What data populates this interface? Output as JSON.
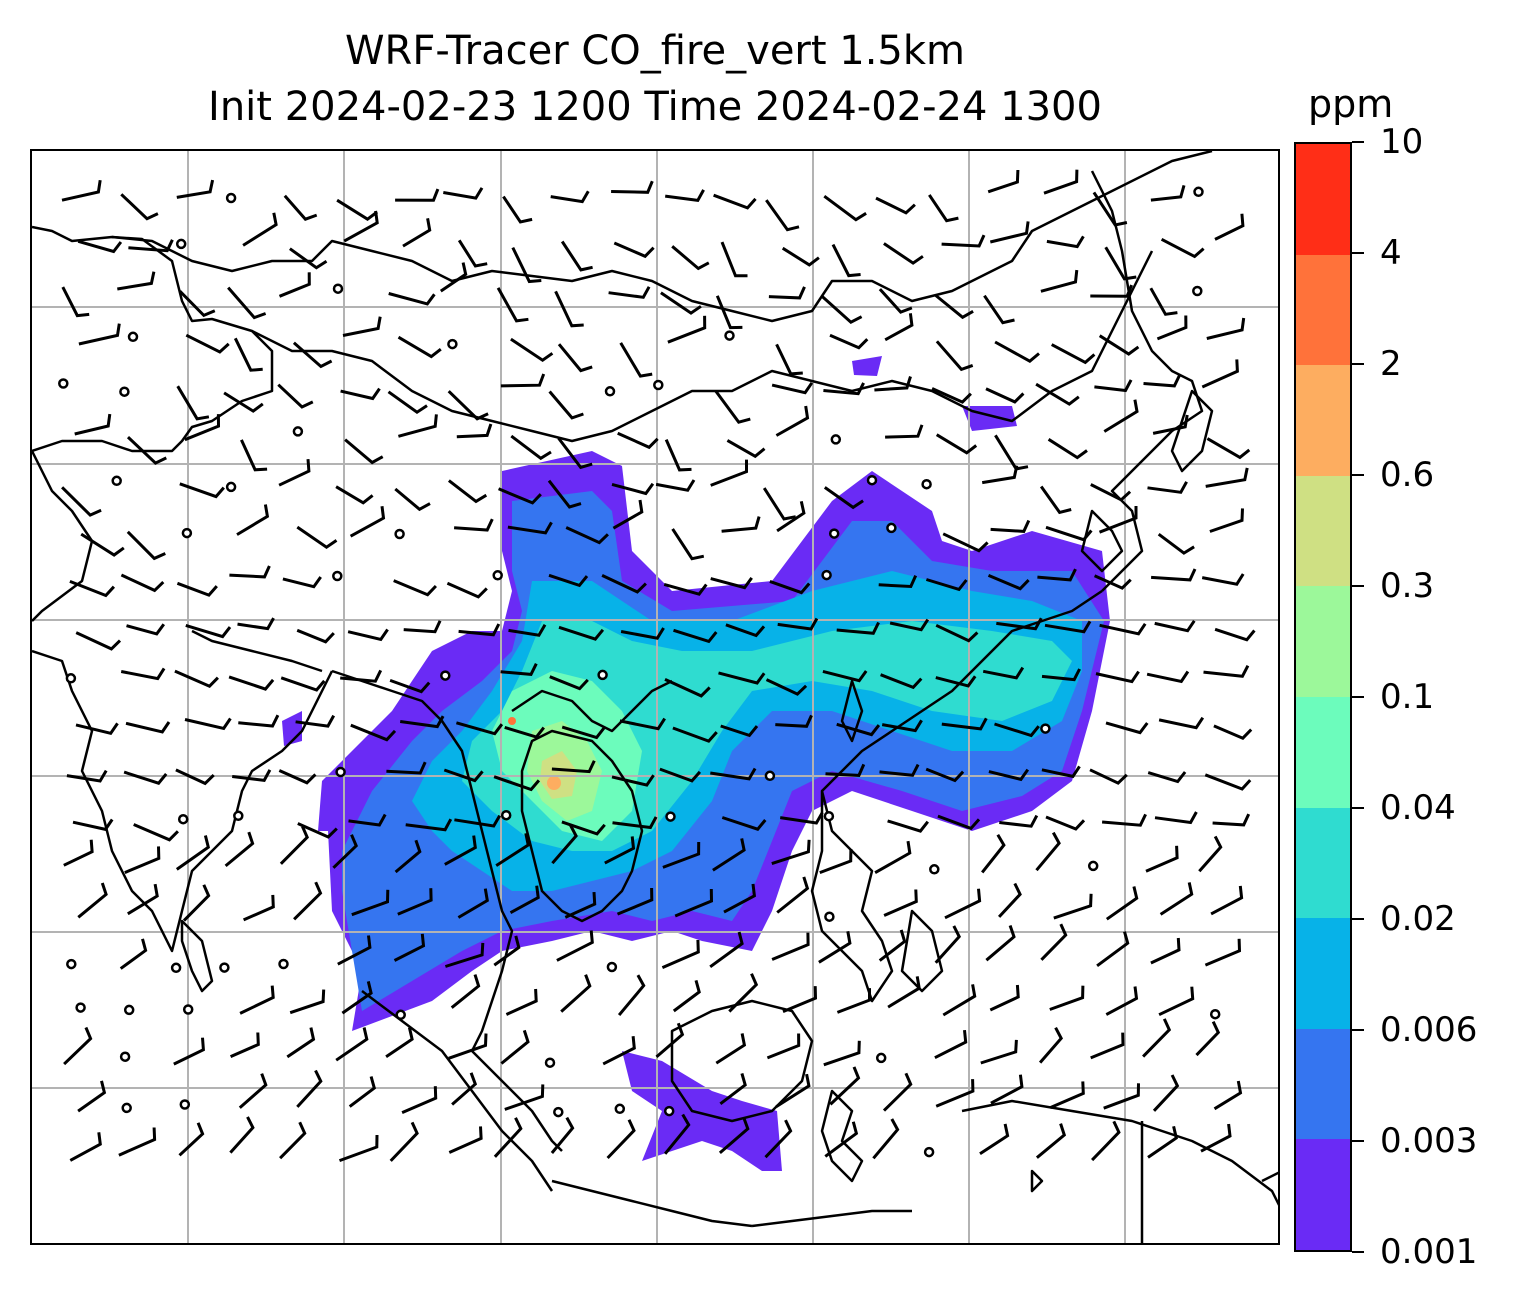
{
  "title": {
    "line1": "WRF-Tracer CO_fire_vert 1.5km",
    "line2": "Init 2024-02-23 1200 Time 2024-02-24 1300"
  },
  "colorbar": {
    "unit": "ppm",
    "levels": [
      "0.001",
      "0.003",
      "0.006",
      "0.02",
      "0.04",
      "0.1",
      "0.3",
      "0.6",
      "2",
      "4",
      "10"
    ],
    "colors": [
      "#6a2bf5",
      "#3575f0",
      "#07b2e8",
      "#2fdcd0",
      "#6cfcbc",
      "#9cf89a",
      "#cfe083",
      "#fdad60",
      "#ff723a",
      "#ff2e17"
    ]
  },
  "map": {
    "graticule": "on",
    "coastline_color": "#000000",
    "grid_color": "#b3b3b3"
  }
}
